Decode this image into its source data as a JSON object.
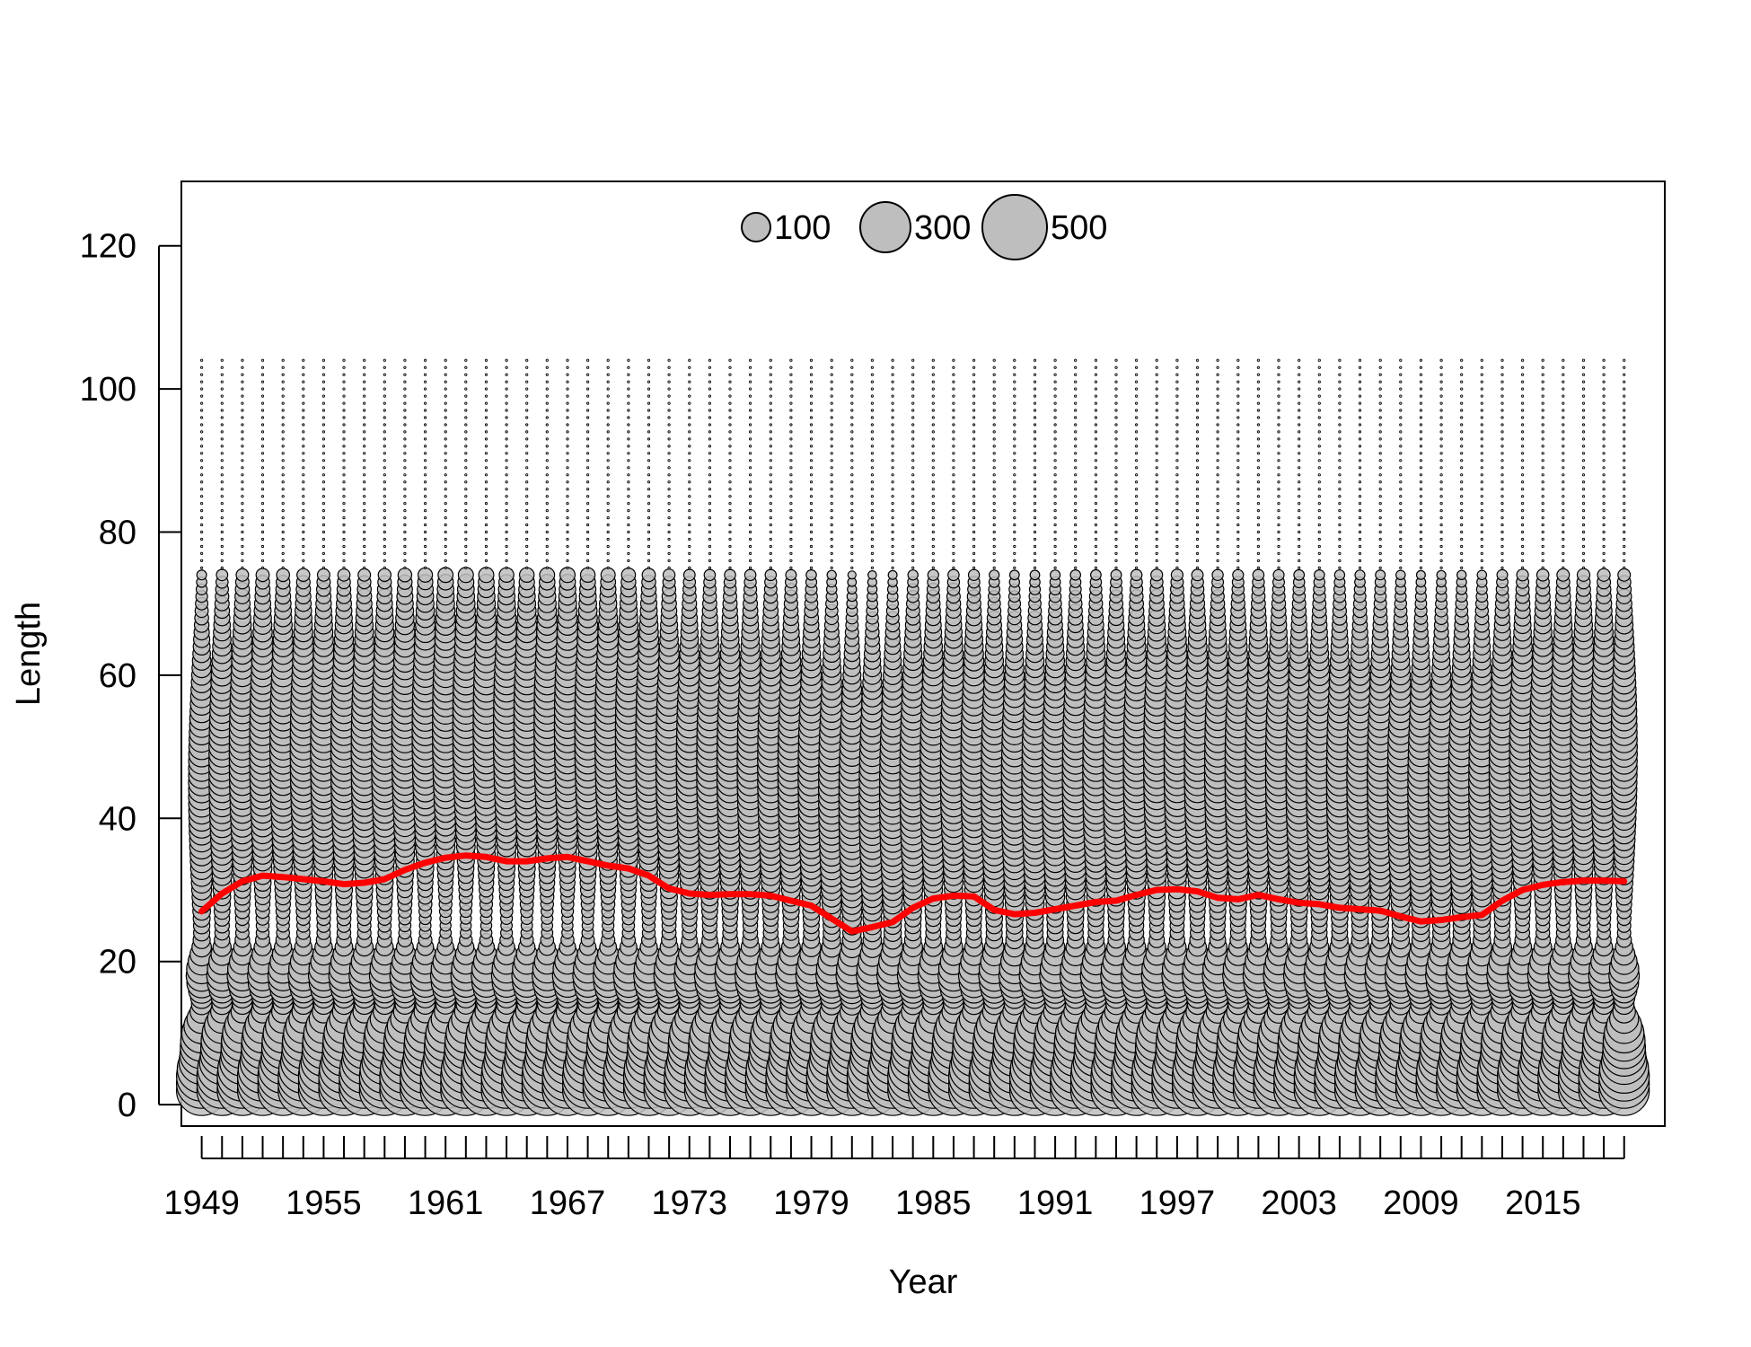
{
  "chart_data": {
    "type": "scatter",
    "subtype": "bubble",
    "title": "",
    "xlabel": "Year",
    "ylabel": "Length",
    "xlim": [
      1948,
      2021
    ],
    "ylim": [
      -3,
      129
    ],
    "x_ticks": [
      1949,
      1950,
      1951,
      1952,
      1953,
      1954,
      1955,
      1956,
      1957,
      1958,
      1959,
      1960,
      1961,
      1962,
      1963,
      1964,
      1965,
      1966,
      1967,
      1968,
      1969,
      1970,
      1971,
      1972,
      1973,
      1974,
      1975,
      1976,
      1977,
      1978,
      1979,
      1980,
      1981,
      1982,
      1983,
      1984,
      1985,
      1986,
      1987,
      1988,
      1989,
      1990,
      1991,
      1992,
      1993,
      1994,
      1995,
      1996,
      1997,
      1998,
      1999,
      2000,
      2001,
      2002,
      2003,
      2004,
      2005,
      2006,
      2007,
      2008,
      2009,
      2010,
      2011,
      2012,
      2013,
      2014,
      2015,
      2016,
      2017,
      2018,
      2019
    ],
    "x_tick_labels": [
      "1949",
      "1955",
      "1961",
      "1967",
      "1973",
      "1979",
      "1985",
      "1991",
      "1997",
      "2003",
      "2009",
      "2015"
    ],
    "y_ticks": [
      0,
      20,
      40,
      60,
      80,
      100,
      120
    ],
    "grid": false,
    "legend": {
      "placement": "top-center",
      "items": [
        {
          "label": "100",
          "value": 100
        },
        {
          "label": "300",
          "value": 300
        },
        {
          "label": "500",
          "value": 500
        }
      ]
    },
    "bubble_fill": "#bebebe",
    "bubble_stroke": "#000000",
    "mean_line_color": "#ff0000",
    "length_bins": {
      "start": 2,
      "end": 104,
      "step": 1
    },
    "mean_length_series": {
      "x": [
        1949,
        1950,
        1951,
        1952,
        1953,
        1954,
        1955,
        1956,
        1957,
        1958,
        1959,
        1960,
        1961,
        1962,
        1963,
        1964,
        1965,
        1966,
        1967,
        1968,
        1969,
        1970,
        1971,
        1972,
        1973,
        1974,
        1975,
        1976,
        1977,
        1978,
        1979,
        1980,
        1981,
        1982,
        1983,
        1984,
        1985,
        1986,
        1987,
        1988,
        1989,
        1990,
        1991,
        1992,
        1993,
        1994,
        1995,
        1996,
        1997,
        1998,
        1999,
        2000,
        2001,
        2002,
        2003,
        2004,
        2005,
        2006,
        2007,
        2008,
        2009,
        2010,
        2011,
        2012,
        2013,
        2014,
        2015,
        2016,
        2017,
        2018,
        2019
      ],
      "y": [
        27.0,
        29.5,
        31.2,
        32.0,
        31.8,
        31.5,
        31.2,
        30.8,
        31.0,
        31.5,
        32.8,
        33.8,
        34.5,
        34.8,
        34.6,
        34.0,
        34.0,
        34.4,
        34.6,
        34.0,
        33.4,
        33.0,
        32.0,
        30.2,
        29.5,
        29.3,
        29.4,
        29.4,
        29.2,
        28.5,
        27.8,
        26.0,
        24.2,
        24.8,
        25.5,
        27.5,
        28.8,
        29.2,
        29.1,
        27.2,
        26.6,
        26.8,
        27.3,
        27.8,
        28.3,
        28.5,
        29.3,
        30.0,
        30.1,
        29.8,
        28.9,
        28.7,
        29.3,
        28.7,
        28.2,
        28.0,
        27.5,
        27.3,
        27.1,
        26.3,
        25.6,
        25.8,
        26.2,
        26.5,
        28.5,
        30.0,
        30.7,
        31.1,
        31.3,
        31.3,
        31.2
      ]
    }
  }
}
